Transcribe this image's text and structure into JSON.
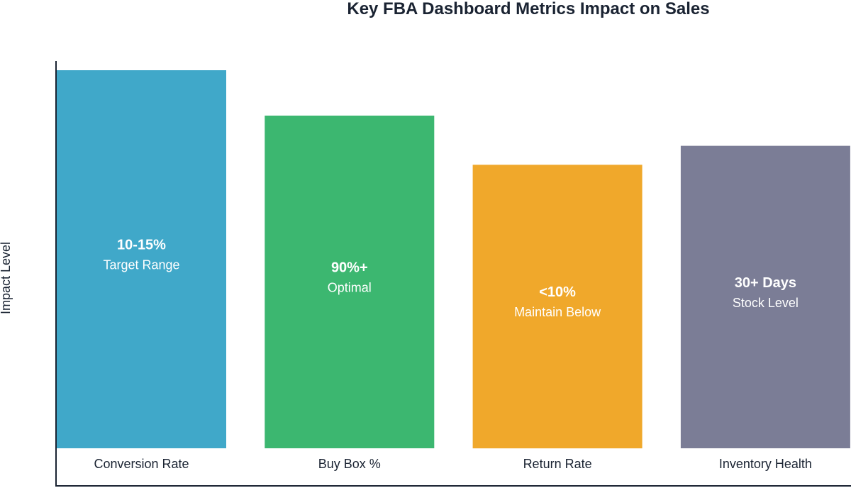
{
  "chart_data": {
    "type": "bar",
    "title": "Key FBA Dashboard Metrics Impact on Sales",
    "xlabel": "",
    "ylabel": "Impact Level",
    "ylim": [
      0,
      100
    ],
    "grid": false,
    "categories": [
      "Conversion Rate",
      "Buy Box %",
      "Return Rate",
      "Inventory Health"
    ],
    "values": [
      100,
      88,
      75,
      80
    ],
    "bar_value_labels": [
      "10-15%",
      "90%+",
      "<10%",
      "30+ Days"
    ],
    "bar_sub_labels": [
      "Target Range",
      "Optimal",
      "Maintain Below",
      "Stock Level"
    ],
    "colors": [
      "#40a8c9",
      "#3cb770",
      "#f0a82b",
      "#7b7d96"
    ]
  }
}
